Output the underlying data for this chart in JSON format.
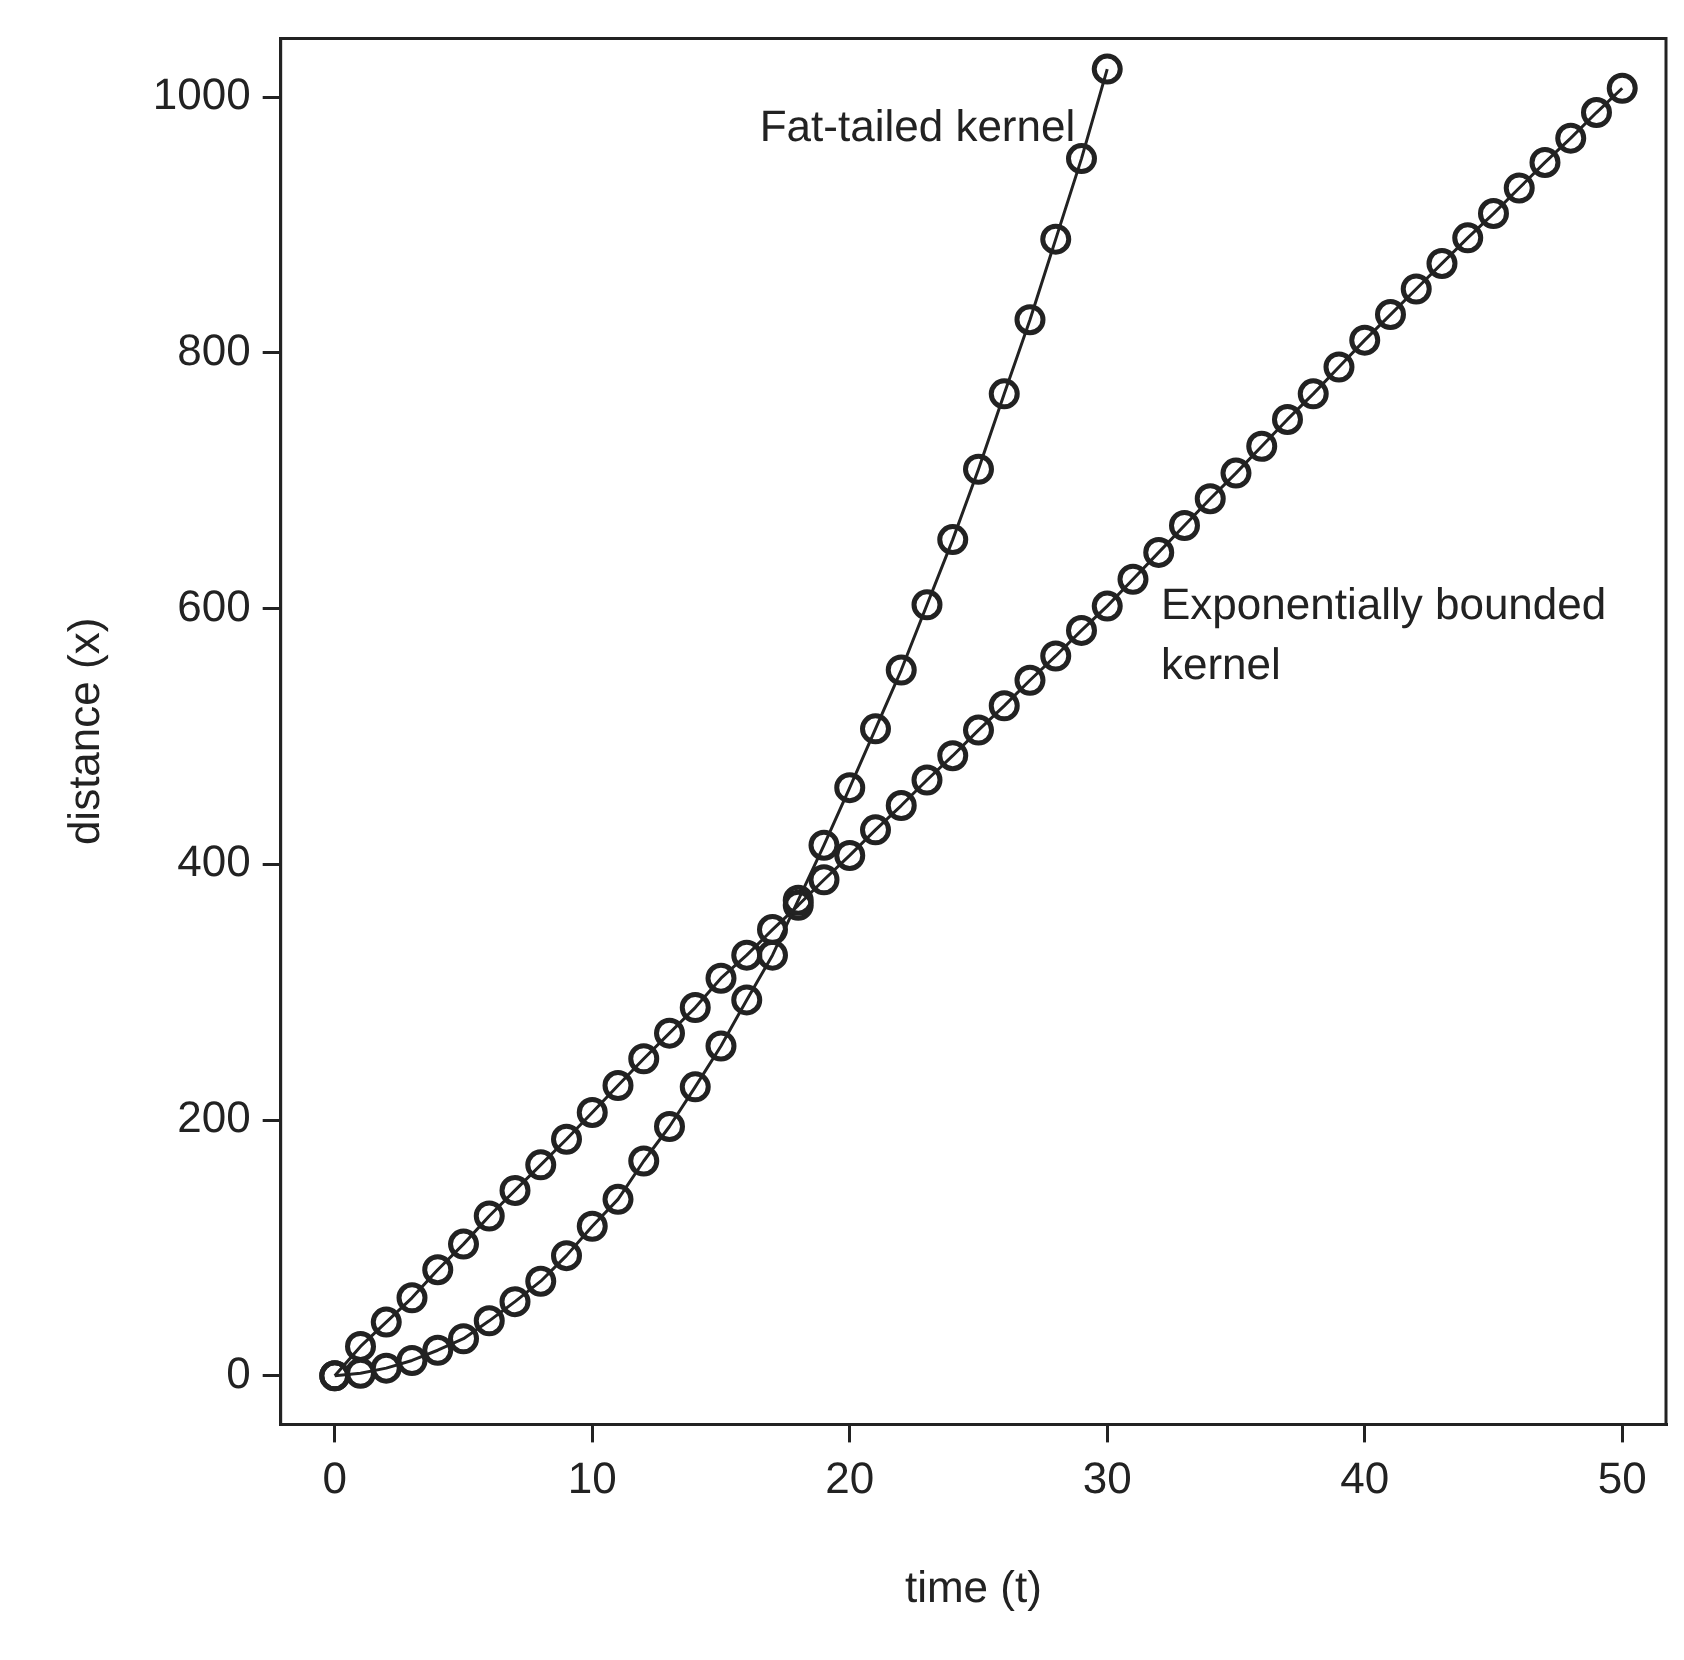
{
  "chart_data": {
    "type": "line",
    "xlabel": "time (t)",
    "ylabel": "distance (x)",
    "xlim": [
      -2.1,
      51.7
    ],
    "xticks": [
      0,
      10,
      20,
      30,
      40,
      50
    ],
    "ylim": [
      -38,
      1046
    ],
    "yticks": [
      0,
      200,
      400,
      600,
      800,
      1000
    ],
    "grid": false,
    "legend": false,
    "marker": "circle",
    "line_style": "solid",
    "series": [
      {
        "name": "Fat-tailed kernel",
        "color": "#222222",
        "x": [
          0,
          1,
          2,
          3,
          4,
          5,
          6,
          7,
          8,
          9,
          10,
          11,
          12,
          13,
          14,
          15,
          16,
          17,
          18,
          19,
          20,
          21,
          22,
          23,
          24,
          25,
          26,
          27,
          28,
          29,
          30
        ],
        "values": [
          0,
          2,
          6,
          12,
          20,
          29,
          43,
          58,
          74,
          94,
          117,
          138,
          168,
          195,
          226,
          258,
          294,
          329,
          372,
          415,
          460,
          506,
          552,
          603,
          654,
          709,
          768,
          826,
          889,
          952,
          1022
        ]
      },
      {
        "name": "Exponentially bounded kernel",
        "color": "#222222",
        "x": [
          0,
          1,
          2,
          3,
          4,
          5,
          6,
          7,
          8,
          9,
          10,
          11,
          12,
          13,
          14,
          15,
          16,
          17,
          18,
          19,
          20,
          21,
          22,
          23,
          24,
          25,
          26,
          27,
          28,
          29,
          30,
          31,
          32,
          33,
          34,
          35,
          36,
          37,
          38,
          39,
          40,
          41,
          42,
          43,
          44,
          45,
          46,
          47,
          48,
          49,
          50
        ],
        "values": [
          0,
          23,
          42,
          61,
          83,
          103,
          125,
          145,
          165,
          185,
          206,
          227,
          248,
          268,
          288,
          311,
          329,
          349,
          368,
          388,
          407,
          427,
          446,
          466,
          485,
          505,
          524,
          544,
          563,
          583,
          602,
          623,
          644,
          665,
          686,
          706,
          727,
          748,
          768,
          789,
          810,
          830,
          850,
          870,
          890,
          909,
          929,
          949,
          968,
          988,
          1007
        ]
      }
    ]
  }
}
